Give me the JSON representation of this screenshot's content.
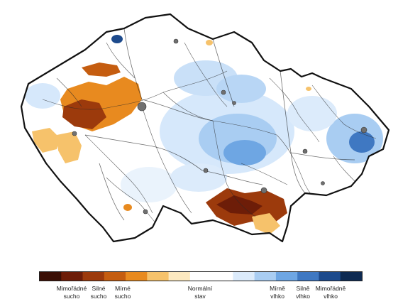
{
  "legend": {
    "colors": [
      "#3a0e04",
      "#6d1d08",
      "#9c3a0c",
      "#c55d10",
      "#e88a1f",
      "#f6c26b",
      "#fde9c0",
      "#ffffff",
      "#ffffff",
      "#dcebfb",
      "#a9cdf2",
      "#6ea6e3",
      "#3f78c2",
      "#1d4a8c",
      "#0e2a52"
    ],
    "labels": [
      {
        "text": "Mimořádné\nsucho"
      },
      {
        "text": "Silné\nsucho"
      },
      {
        "text": "Mírné\nsucho"
      },
      {
        "text": "Normální\nstav"
      },
      {
        "text": "Mírně\nvlhko"
      },
      {
        "text": "Silně\nvlhko"
      },
      {
        "text": "Mimořádně\nvlhko"
      }
    ]
  },
  "map": {
    "background_color": "#ffffff",
    "border_color": "#111111",
    "river_color": "#2a2a2a",
    "city_color": "#707070"
  }
}
